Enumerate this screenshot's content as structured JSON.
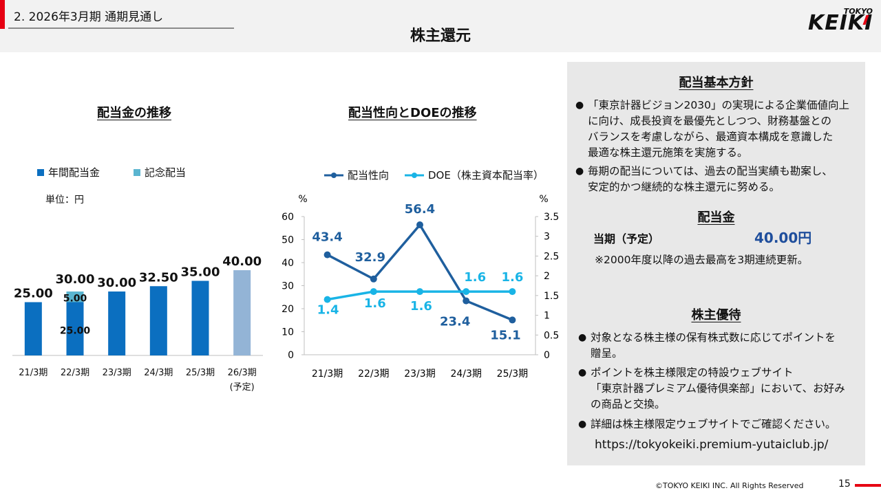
{
  "header": {
    "section": "2.  2026年3月期  通期見通し",
    "title": "株主還元",
    "logo_small": "TOKYO",
    "logo_big": "KEIKI"
  },
  "left_chart": {
    "title": "配当金の推移",
    "legend": [
      "年間配当金",
      "記念配当"
    ],
    "unit": "単位：円"
  },
  "right_chart": {
    "title": "配当性向とDOEの推移",
    "legend": [
      "配当性向",
      "DOE（株主資本配当率）"
    ],
    "y_unit_left": "%",
    "y_unit_right": "%"
  },
  "chart_data": [
    {
      "type": "bar",
      "title": "配当金の推移",
      "unit": "単位：円",
      "categories": [
        "21/3期",
        "22/3期",
        "23/3期",
        "24/3期",
        "25/3期",
        "26/3期"
      ],
      "category_notes": [
        "",
        "",
        "",
        "",
        "",
        "(予定)"
      ],
      "series": [
        {
          "name": "年間配当金",
          "values": [
            25.0,
            25.0,
            30.0,
            32.5,
            35.0,
            40.0
          ],
          "labels": [
            "25.00",
            "25.00",
            "30.00",
            "32.50",
            "35.00",
            "40.00"
          ]
        },
        {
          "name": "記念配当",
          "values": [
            0,
            5.0,
            0,
            0,
            0,
            0
          ],
          "labels": [
            "",
            "5.00",
            "",
            "",
            "",
            ""
          ]
        }
      ],
      "totals": [
        "",
        "30.00",
        "",
        "",
        "",
        ""
      ],
      "ylim": [
        0,
        50
      ],
      "colors": {
        "annual": "#0b6fc0",
        "commemorative": "#5ab5d0",
        "forecast": "#93b4d6"
      }
    },
    {
      "type": "line",
      "title": "配当性向とDOEの推移",
      "categories": [
        "21/3期",
        "22/3期",
        "23/3期",
        "24/3期",
        "25/3期"
      ],
      "series": [
        {
          "name": "配当性向",
          "axis": "left",
          "values": [
            43.4,
            32.9,
            56.4,
            23.4,
            15.1
          ],
          "color": "#1f5f9e"
        },
        {
          "name": "DOE（株主資本配当率）",
          "axis": "right",
          "values": [
            1.4,
            1.6,
            1.6,
            1.6,
            1.6
          ],
          "color": "#19b4e6"
        }
      ],
      "y_left": {
        "min": 0,
        "max": 60,
        "ticks": [
          "0",
          "10",
          "20",
          "30",
          "40",
          "50",
          "60"
        ],
        "unit": "%"
      },
      "y_right": {
        "min": 0,
        "max": 3.5,
        "ticks": [
          "0",
          "0.5",
          "1",
          "1.5",
          "2",
          "2.5",
          "3",
          "3.5"
        ],
        "unit": "%"
      }
    }
  ],
  "policy": {
    "title": "配当基本方針",
    "bullets": [
      [
        "「東京計器ビジョン2030」の実現による企業価値向上",
        "に向け、成長投資を最優先としつつ、財務基盤との",
        "バランスを考慮しながら、最適資本構成を意識した",
        "最適な株主還元施策を実施する。"
      ],
      [
        "毎期の配当については、過去の配当実績も勘案し、",
        "安定的かつ継続的な株主還元に努める。"
      ]
    ]
  },
  "dividend": {
    "title": "配当金",
    "label": "当期（予定）",
    "value": "40.00円",
    "note": "※2000年度以降の過去最高を3期連続更新。"
  },
  "benefits": {
    "title": "株主優待",
    "bullets": [
      [
        "対象となる株主様の保有株式数に応じてポイントを",
        "贈呈。"
      ],
      [
        "ポイントを株主様限定の特設ウェブサイト",
        "「東京計器プレミアム優待倶楽部」において、お好み",
        "の商品と交換。"
      ],
      [
        "詳細は株主様限定ウェブサイトでご確認ください。"
      ]
    ],
    "url": "https://tokyokeiki.premium-yutaiclub.jp/"
  },
  "footer": {
    "copyright": "©TOKYO KEIKI INC. All Rights Reserved",
    "page": "15"
  }
}
